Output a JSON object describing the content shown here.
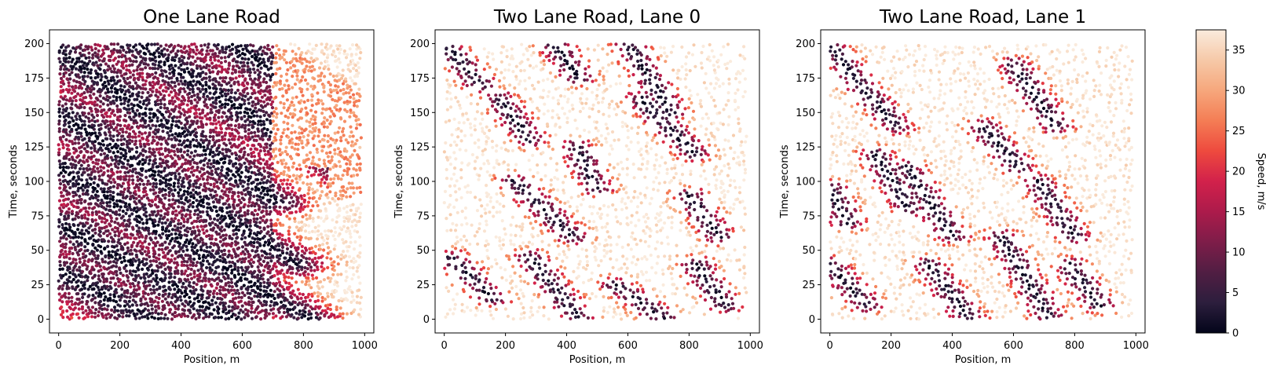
{
  "chart_data": [
    {
      "type": "scatter",
      "title": "One Lane Road",
      "xlabel": "Position, m",
      "ylabel": "Time, seconds",
      "xlim": [
        -30,
        1030
      ],
      "ylim": [
        -10,
        210
      ],
      "xticks": [
        0,
        200,
        400,
        600,
        800,
        1000
      ],
      "yticks": [
        0,
        25,
        50,
        75,
        100,
        125,
        150,
        175,
        200
      ],
      "grid": false,
      "color_channel": "speed",
      "pattern": "dense congestion with backward-propagating jam bands; free flow in upper right",
      "jam_bands": [
        {
          "x0": 0,
          "t0": 195,
          "x1": 720,
          "t1": 85
        },
        {
          "x0": 0,
          "t0": 150,
          "x1": 780,
          "t1": 40
        },
        {
          "x0": 0,
          "t0": 110,
          "x1": 820,
          "t1": 0
        },
        {
          "x0": 0,
          "t0": 70,
          "x1": 560,
          "t1": 0
        },
        {
          "x0": 0,
          "t0": 35,
          "x1": 300,
          "t1": 0
        },
        {
          "x0": 250,
          "t0": 200,
          "x1": 980,
          "t1": 100
        },
        {
          "x0": 560,
          "t0": 200,
          "x1": 990,
          "t1": 140
        }
      ],
      "free_flow_regions": [
        {
          "x_range": [
            700,
            1000
          ],
          "t_range": [
            110,
            200
          ]
        },
        {
          "x_range": [
            880,
            1000
          ],
          "t_range": [
            40,
            110
          ]
        }
      ]
    },
    {
      "type": "scatter",
      "title": "Two Lane Road, Lane 0",
      "xlabel": "Position, m",
      "ylabel": "Time, seconds",
      "xlim": [
        -30,
        1030
      ],
      "ylim": [
        -10,
        210
      ],
      "xticks": [
        0,
        200,
        400,
        600,
        800,
        1000
      ],
      "yticks": [
        0,
        25,
        50,
        75,
        100,
        125,
        150,
        175,
        200
      ],
      "grid": false,
      "color_channel": "speed",
      "pattern": "mostly free flow with scattered short jam clusters",
      "jam_bands": [
        {
          "x0": 0,
          "t0": 200,
          "x1": 120,
          "t1": 170
        },
        {
          "x0": 20,
          "t0": 45,
          "x1": 160,
          "t1": 15
        },
        {
          "x0": 180,
          "t0": 160,
          "x1": 280,
          "t1": 130
        },
        {
          "x0": 230,
          "t0": 100,
          "x1": 420,
          "t1": 60
        },
        {
          "x0": 280,
          "t0": 45,
          "x1": 440,
          "t1": 0
        },
        {
          "x0": 360,
          "t0": 200,
          "x1": 440,
          "t1": 175
        },
        {
          "x0": 430,
          "t0": 125,
          "x1": 500,
          "t1": 95
        },
        {
          "x0": 560,
          "t0": 25,
          "x1": 720,
          "t1": 0
        },
        {
          "x0": 600,
          "t0": 200,
          "x1": 740,
          "t1": 150
        },
        {
          "x0": 640,
          "t0": 160,
          "x1": 820,
          "t1": 120
        },
        {
          "x0": 800,
          "t0": 90,
          "x1": 900,
          "t1": 60
        },
        {
          "x0": 820,
          "t0": 40,
          "x1": 920,
          "t1": 10
        }
      ],
      "free_flow_regions": []
    },
    {
      "type": "scatter",
      "title": "Two Lane Road, Lane 1",
      "xlabel": "Position, m",
      "ylabel": "Time, seconds",
      "xlim": [
        -30,
        1030
      ],
      "ylim": [
        -10,
        210
      ],
      "xticks": [
        0,
        200,
        400,
        600,
        800,
        1000
      ],
      "yticks": [
        0,
        25,
        50,
        75,
        100,
        125,
        150,
        175,
        200
      ],
      "grid": false,
      "color_channel": "speed",
      "pattern": "mostly free flow with scattered jam clusters",
      "jam_bands": [
        {
          "x0": 0,
          "t0": 95,
          "x1": 60,
          "t1": 70
        },
        {
          "x0": 0,
          "t0": 40,
          "x1": 120,
          "t1": 10
        },
        {
          "x0": 60,
          "t0": 180,
          "x1": 220,
          "t1": 140
        },
        {
          "x0": 150,
          "t0": 120,
          "x1": 260,
          "t1": 80
        },
        {
          "x0": 250,
          "t0": 110,
          "x1": 400,
          "t1": 60
        },
        {
          "x0": 320,
          "t0": 40,
          "x1": 460,
          "t1": 0
        },
        {
          "x0": 500,
          "t0": 140,
          "x1": 620,
          "t1": 110
        },
        {
          "x0": 560,
          "t0": 60,
          "x1": 720,
          "t1": 0
        },
        {
          "x0": 600,
          "t0": 185,
          "x1": 740,
          "t1": 140
        },
        {
          "x0": 680,
          "t0": 100,
          "x1": 800,
          "t1": 60
        },
        {
          "x0": 780,
          "t0": 40,
          "x1": 880,
          "t1": 10
        },
        {
          "x0": 0,
          "t0": 200,
          "x1": 80,
          "t1": 175
        }
      ],
      "free_flow_regions": []
    }
  ],
  "colorbar": {
    "label": "Speed, m/s",
    "min": 0,
    "max": 37.5,
    "ticks": [
      0,
      5,
      10,
      15,
      20,
      25,
      30,
      35
    ],
    "colormap": "rocket",
    "stops": [
      "#03051a",
      "#2c1e3d",
      "#511e43",
      "#7e1d49",
      "#ac1b4b",
      "#d2214b",
      "#ee4a3e",
      "#f47d55",
      "#f6a77c",
      "#f6c9a8",
      "#faebdd"
    ]
  }
}
